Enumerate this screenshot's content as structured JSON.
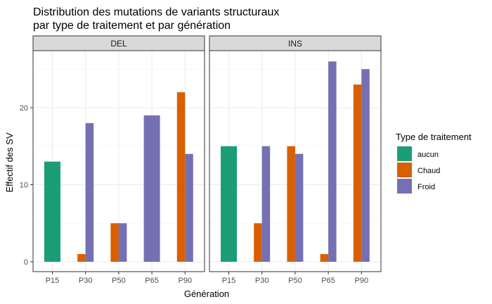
{
  "chart_data": {
    "type": "bar",
    "title_lines": [
      "Distribution des mutations de variants structuraux",
      "par type de traitement et par génération"
    ],
    "xlabel": "Génération",
    "ylabel": "Effectif des SV",
    "ylim": [
      0,
      27.5
    ],
    "yticks": [
      0,
      10,
      20
    ],
    "grid": true,
    "legend": {
      "title": "Type de traitement",
      "placement": "right",
      "entries": [
        "aucun",
        "Chaud",
        "Froid"
      ]
    },
    "colors": {
      "aucun": "#1b9e77",
      "Chaud": "#d95f02",
      "Froid": "#7570b3"
    },
    "categories": [
      "P15",
      "P30",
      "P50",
      "P65",
      "P90"
    ],
    "panels": [
      {
        "label": "DEL",
        "bars": [
          {
            "x": "P15",
            "series": "aucun",
            "value": 13
          },
          {
            "x": "P30",
            "series": "Chaud",
            "value": 1
          },
          {
            "x": "P30",
            "series": "Froid",
            "value": 18
          },
          {
            "x": "P50",
            "series": "Chaud",
            "value": 5
          },
          {
            "x": "P50",
            "series": "Froid",
            "value": 5
          },
          {
            "x": "P65",
            "series": "Froid",
            "value": 19
          },
          {
            "x": "P90",
            "series": "Chaud",
            "value": 22
          },
          {
            "x": "P90",
            "series": "Froid",
            "value": 14
          }
        ]
      },
      {
        "label": "INS",
        "bars": [
          {
            "x": "P15",
            "series": "aucun",
            "value": 15
          },
          {
            "x": "P30",
            "series": "Chaud",
            "value": 5
          },
          {
            "x": "P30",
            "series": "Froid",
            "value": 15
          },
          {
            "x": "P50",
            "series": "Chaud",
            "value": 15
          },
          {
            "x": "P50",
            "series": "Froid",
            "value": 14
          },
          {
            "x": "P65",
            "series": "Chaud",
            "value": 1
          },
          {
            "x": "P65",
            "series": "Froid",
            "value": 26
          },
          {
            "x": "P90",
            "series": "Chaud",
            "value": 23
          },
          {
            "x": "P90",
            "series": "Froid",
            "value": 25
          }
        ]
      }
    ]
  }
}
